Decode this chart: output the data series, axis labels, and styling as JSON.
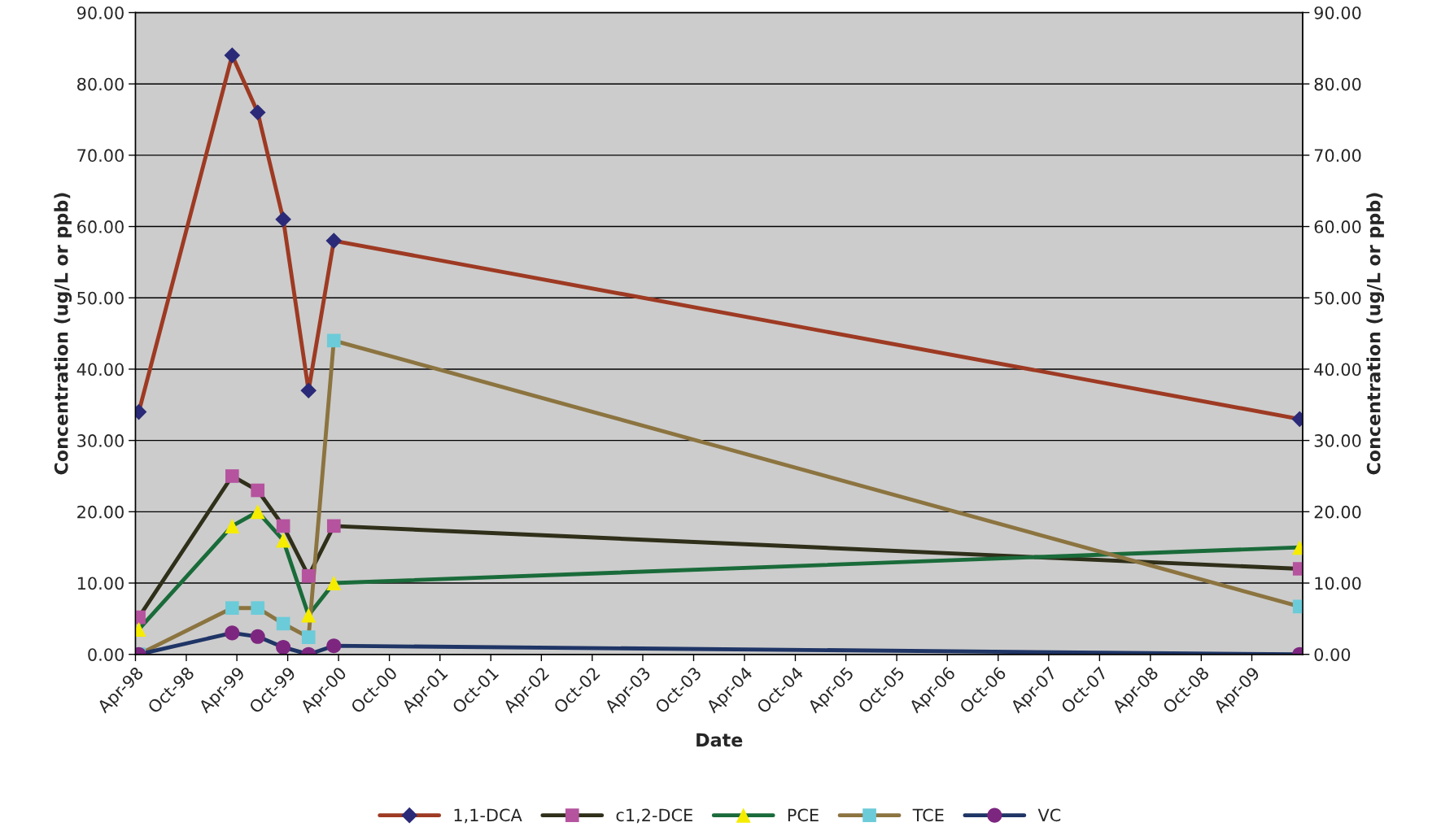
{
  "chart_data": {
    "type": "line",
    "xlabel": "Date",
    "ylabel": "Concentration (ug/L or ppb)",
    "y2label": "Concentration (ug/L or ppb)",
    "x": [
      "1998-04-13",
      "1999-03-15",
      "1999-06-15",
      "1999-09-15",
      "1999-12-15",
      "2000-03-15",
      "2009-09-20"
    ],
    "series": [
      {
        "name": "1,1-DCA",
        "color": "#9e3a23",
        "colors": [
          "#2a2a78",
          "#2a2a78",
          "#2a2a78",
          "#2a2a78",
          "#2a2a78",
          "#2a2a78",
          "#2a2a78"
        ],
        "marker": "diamond",
        "values": [
          34,
          84,
          76,
          61,
          37,
          58,
          33
        ]
      },
      {
        "name": "c1,2-DCE",
        "color": "#2f2f1a",
        "colors": [
          "#b5539e",
          "#b5539e",
          "#b5539e",
          "#b5539e",
          "#b5539e",
          "#b5539e",
          "#b5539e"
        ],
        "marker": "square",
        "values": [
          5.2,
          25,
          23,
          18,
          11,
          18,
          12
        ]
      },
      {
        "name": "PCE",
        "color": "#1a6b3a",
        "colors": [
          "#f5ec00",
          "#f5ec00",
          "#f5ec00",
          "#f5ec00",
          "#f5ec00",
          "#f5ec00",
          "#f5ec00"
        ],
        "marker": "triangle",
        "values": [
          3.5,
          18,
          20,
          16,
          5.5,
          10,
          15
        ]
      },
      {
        "name": "TCE",
        "color": "#8c7440",
        "colors": [
          "#6ccbd8",
          "#6ccbd8",
          "#6ccbd8",
          "#6ccbd8",
          "#6ccbd8",
          "#6ccbd8",
          "#6ccbd8"
        ],
        "marker": "square",
        "values": [
          0,
          6.5,
          6.5,
          4.3,
          2.4,
          44,
          6.7
        ]
      },
      {
        "name": "VC",
        "color": "#1f3566",
        "colors": [
          "#7d2680",
          "#7d2680",
          "#7d2680",
          "#7d2680",
          "#7d2680",
          "#7d2680",
          "#7d2680"
        ],
        "marker": "circle",
        "values": [
          0,
          3,
          2.5,
          1,
          0,
          1.2,
          0
        ]
      }
    ],
    "xlim": [
      "1998-04-01",
      "2009-10-01"
    ],
    "xticks": [
      {
        "value": "1998-04-01",
        "label": "Apr-98"
      },
      {
        "value": "1998-10-01",
        "label": "Oct-98"
      },
      {
        "value": "1999-04-01",
        "label": "Apr-99"
      },
      {
        "value": "1999-10-01",
        "label": "Oct-99"
      },
      {
        "value": "2000-04-01",
        "label": "Apr-00"
      },
      {
        "value": "2000-10-01",
        "label": "Oct-00"
      },
      {
        "value": "2001-04-01",
        "label": "Apr-01"
      },
      {
        "value": "2001-10-01",
        "label": "Oct-01"
      },
      {
        "value": "2002-04-01",
        "label": "Apr-02"
      },
      {
        "value": "2002-10-01",
        "label": "Oct-02"
      },
      {
        "value": "2003-04-01",
        "label": "Apr-03"
      },
      {
        "value": "2003-10-01",
        "label": "Oct-03"
      },
      {
        "value": "2004-04-01",
        "label": "Apr-04"
      },
      {
        "value": "2004-10-01",
        "label": "Oct-04"
      },
      {
        "value": "2005-04-01",
        "label": "Apr-05"
      },
      {
        "value": "2005-10-01",
        "label": "Oct-05"
      },
      {
        "value": "2006-04-01",
        "label": "Apr-06"
      },
      {
        "value": "2006-10-01",
        "label": "Oct-06"
      },
      {
        "value": "2007-04-01",
        "label": "Apr-07"
      },
      {
        "value": "2007-10-01",
        "label": "Oct-07"
      },
      {
        "value": "2008-04-01",
        "label": "Apr-08"
      },
      {
        "value": "2008-10-01",
        "label": "Oct-08"
      },
      {
        "value": "2009-04-01",
        "label": "Apr-09"
      }
    ],
    "ylim": [
      0,
      90
    ],
    "yticks": [
      {
        "value": 0,
        "label": "0.00"
      },
      {
        "value": 10,
        "label": "10.00"
      },
      {
        "value": 20,
        "label": "20.00"
      },
      {
        "value": 30,
        "label": "30.00"
      },
      {
        "value": 40,
        "label": "40.00"
      },
      {
        "value": 50,
        "label": "50.00"
      },
      {
        "value": 60,
        "label": "60.00"
      },
      {
        "value": 70,
        "label": "70.00"
      },
      {
        "value": 80,
        "label": "80.00"
      },
      {
        "value": 90,
        "label": "90.00"
      }
    ],
    "y2lim": [
      0,
      90
    ],
    "y2ticks": [
      {
        "value": 0,
        "label": "0.00"
      },
      {
        "value": 10,
        "label": "10.00"
      },
      {
        "value": 20,
        "label": "20.00"
      },
      {
        "value": 30,
        "label": "30.00"
      },
      {
        "value": 40,
        "label": "40.00"
      },
      {
        "value": 50,
        "label": "50.00"
      },
      {
        "value": 60,
        "label": "60.00"
      },
      {
        "value": 70,
        "label": "70.00"
      },
      {
        "value": 80,
        "label": "80.00"
      },
      {
        "value": 90,
        "label": "90.00"
      }
    ],
    "grid": "y",
    "legend": "bottom",
    "line_style": "solid"
  }
}
